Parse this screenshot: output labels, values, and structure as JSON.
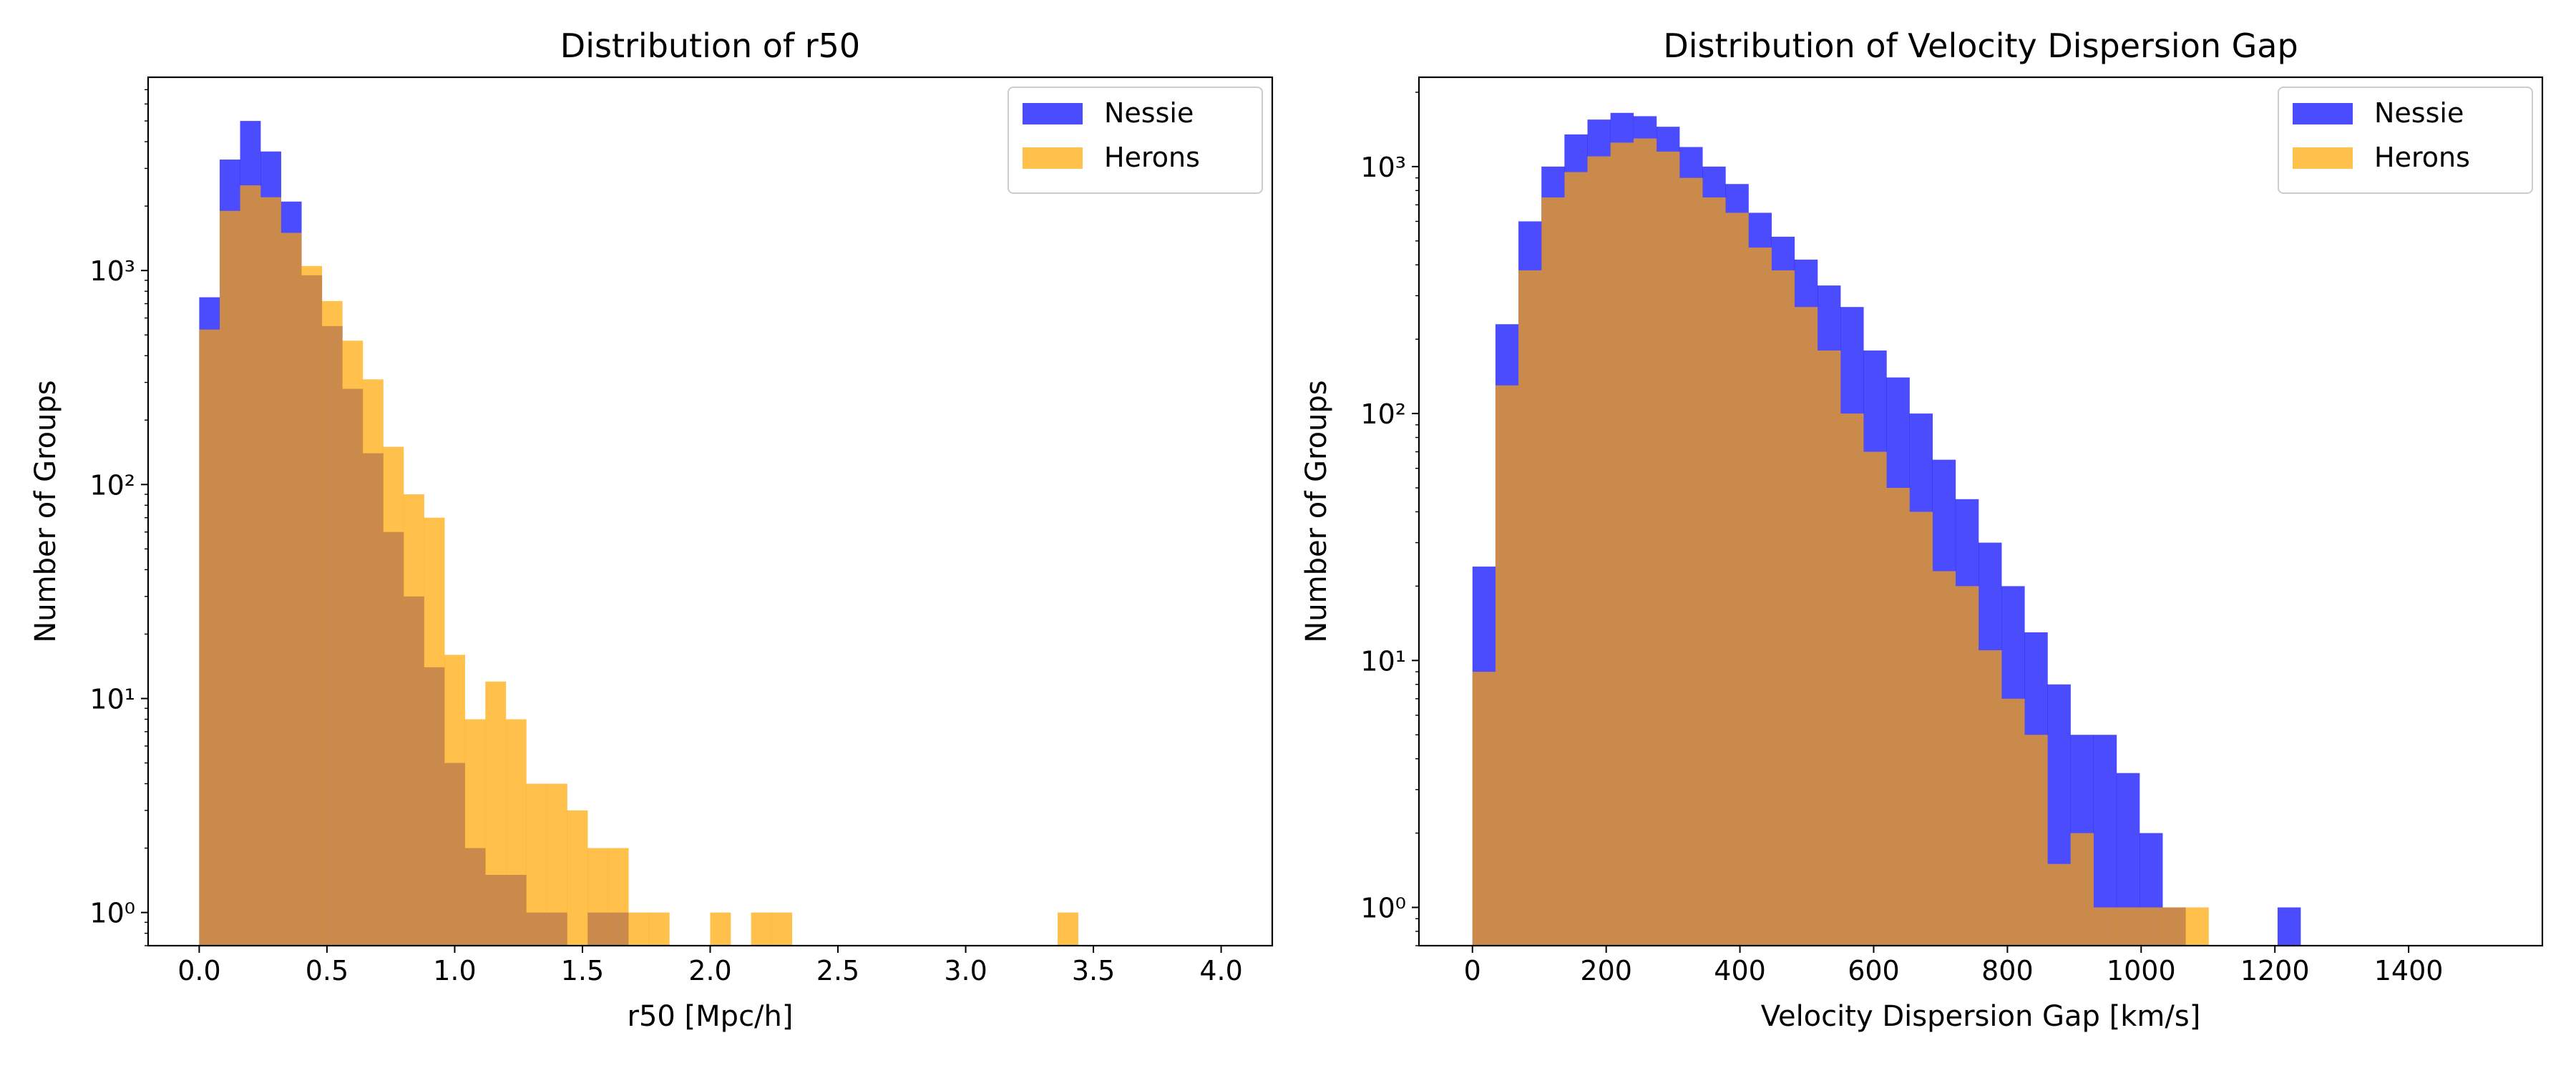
{
  "chart_data": [
    {
      "type": "histogram",
      "title": "Distribution of r50",
      "xlabel": "r50 [Mpc/h]",
      "ylabel": "Number of Groups",
      "xlim": [
        -0.2,
        4.2
      ],
      "ylim": [
        0.7,
        8000
      ],
      "yscale": "log",
      "xticks": [
        0.0,
        0.5,
        1.0,
        1.5,
        2.0,
        2.5,
        3.0,
        3.5,
        4.0
      ],
      "xtick_labels": [
        "0.0",
        "0.5",
        "1.0",
        "1.5",
        "2.0",
        "2.5",
        "3.0",
        "3.5",
        "4.0"
      ],
      "yticks": [
        1,
        10,
        100,
        1000
      ],
      "ytick_labels": [
        "10⁰",
        "10¹",
        "10²",
        "10³"
      ],
      "grid": false,
      "legend_position": "top-right",
      "bin_edges": [
        0.0,
        0.08,
        0.16,
        0.24,
        0.32,
        0.4,
        0.48,
        0.56,
        0.64,
        0.72,
        0.8,
        0.88,
        0.96,
        1.04,
        1.12,
        1.2,
        1.28,
        1.36,
        1.44,
        1.52,
        1.6,
        1.68,
        1.76,
        1.84,
        1.92,
        2.0,
        2.08,
        2.16,
        2.24,
        2.32,
        2.4,
        2.48,
        2.56,
        2.64,
        2.72,
        2.8,
        2.88,
        2.96,
        3.04,
        3.12,
        3.2,
        3.28,
        3.36,
        3.44,
        3.52,
        3.6,
        3.68,
        3.76,
        3.84,
        3.92,
        4.0
      ],
      "series": [
        {
          "name": "Nessie",
          "color": "#0000ff",
          "opacity": 0.7,
          "values": [
            750,
            3300,
            5000,
            3600,
            2100,
            950,
            550,
            280,
            140,
            60,
            30,
            14,
            5,
            2,
            1.5,
            1.5,
            1,
            1,
            0,
            1,
            1,
            0,
            0,
            0,
            0,
            0,
            0,
            0,
            0,
            0,
            0,
            0,
            0,
            0,
            0,
            0,
            0,
            0,
            0,
            0,
            0,
            0,
            0,
            0,
            0,
            0,
            0,
            0,
            0,
            0
          ]
        },
        {
          "name": "Herons",
          "color": "#ffa500",
          "opacity": 0.7,
          "values": [
            530,
            1900,
            2500,
            2200,
            1500,
            1050,
            720,
            470,
            310,
            150,
            90,
            70,
            16,
            8,
            12,
            8,
            4,
            4,
            3,
            2,
            2,
            1,
            1,
            0,
            0,
            1,
            0,
            1,
            1,
            0,
            0,
            0,
            0,
            0,
            0,
            0,
            0,
            0,
            0,
            0,
            0,
            0,
            1,
            0,
            0,
            0,
            0,
            0,
            0,
            0
          ]
        }
      ]
    },
    {
      "type": "histogram",
      "title": "Distribution of Velocity Dispersion Gap",
      "xlabel": "Velocity Dispersion Gap [km/s]",
      "ylabel": "Number of Groups",
      "xlim": [
        -80,
        1600
      ],
      "ylim": [
        0.7,
        2300
      ],
      "yscale": "log",
      "xticks": [
        0,
        200,
        400,
        600,
        800,
        1000,
        1200,
        1400
      ],
      "xtick_labels": [
        "0",
        "200",
        "400",
        "600",
        "800",
        "1000",
        "1200",
        "1400"
      ],
      "yticks": [
        1,
        10,
        100,
        1000
      ],
      "ytick_labels": [
        "10⁰",
        "10¹",
        "10²",
        "10³"
      ],
      "grid": false,
      "legend_position": "top-right",
      "bin_edges": [
        0,
        34.4,
        68.8,
        103.2,
        137.6,
        172,
        206.4,
        240.8,
        275.2,
        309.6,
        344,
        378.4,
        412.8,
        447.2,
        481.6,
        516,
        550.4,
        584.8,
        619.2,
        653.6,
        688,
        722.4,
        756.8,
        791.2,
        825.6,
        860,
        894.4,
        928.8,
        963.2,
        997.6,
        1032,
        1066.4,
        1100.8,
        1135.2,
        1169.6,
        1204,
        1238.4
      ],
      "series": [
        {
          "name": "Nessie",
          "color": "#0000ff",
          "opacity": 0.7,
          "values": [
            24,
            230,
            600,
            1000,
            1350,
            1550,
            1650,
            1600,
            1450,
            1200,
            1000,
            850,
            650,
            520,
            420,
            330,
            270,
            180,
            140,
            100,
            65,
            45,
            30,
            20,
            13,
            8,
            5,
            5,
            3.5,
            2,
            1,
            0,
            0,
            0,
            0,
            1
          ]
        },
        {
          "name": "Herons",
          "color": "#ffa500",
          "opacity": 0.7,
          "values": [
            9,
            130,
            380,
            750,
            950,
            1100,
            1250,
            1300,
            1150,
            900,
            750,
            650,
            470,
            380,
            270,
            180,
            100,
            70,
            50,
            40,
            23,
            20,
            11,
            7,
            5,
            1.5,
            2,
            1,
            1,
            1,
            1,
            1,
            0,
            0,
            0,
            0
          ]
        }
      ]
    }
  ]
}
